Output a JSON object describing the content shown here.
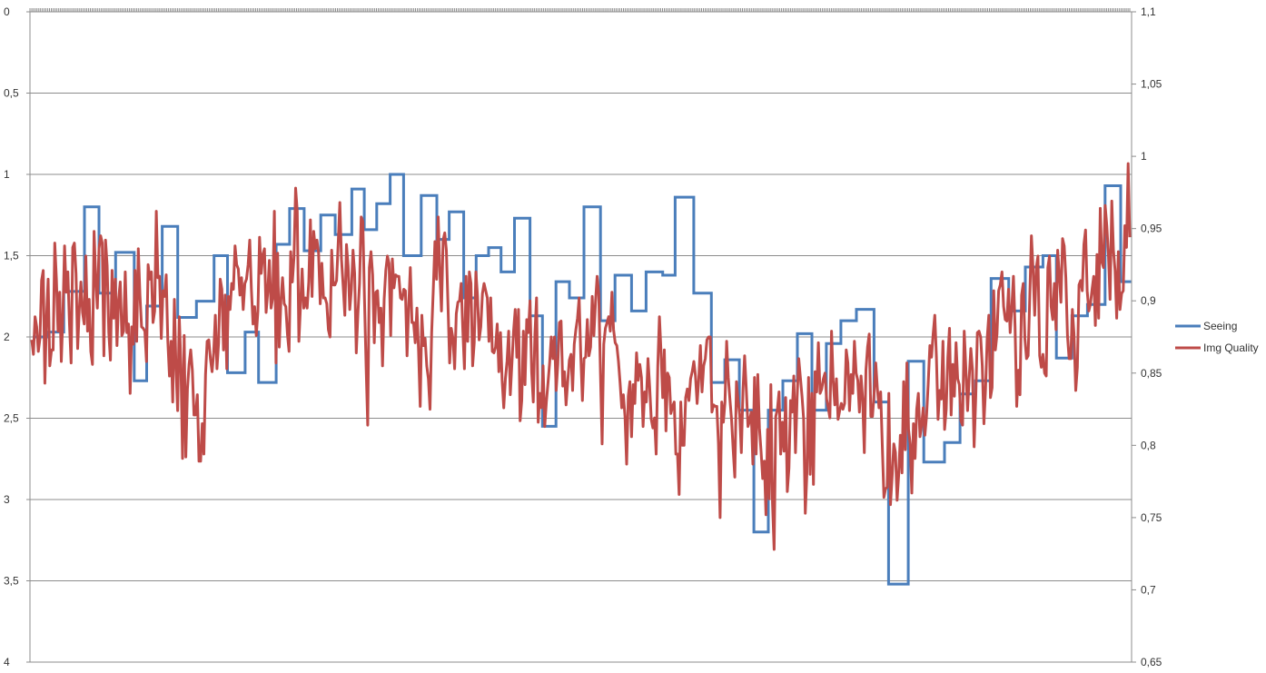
{
  "chart_data": {
    "type": "line",
    "title": "",
    "xlabel": "",
    "ylabel": "",
    "y_left": {
      "ylim": [
        0,
        4
      ],
      "reversed": true,
      "ticks": [
        "0",
        "0,5",
        "1",
        "1,5",
        "2",
        "2,5",
        "3",
        "3,5",
        "4"
      ]
    },
    "y_right": {
      "ylim": [
        0.65,
        1.1
      ],
      "ticks": [
        "1,1",
        "1,05",
        "1",
        "0,95",
        "0,9",
        "0,85",
        "0,8",
        "0,75",
        "0,7",
        "0,65"
      ]
    },
    "grid": true,
    "legend_position": "right",
    "x_points": 620,
    "series": [
      {
        "name": "Seeing",
        "axis": "left",
        "color": "#4a7ebb",
        "steps": [
          [
            0,
            2.0
          ],
          [
            15,
            1.97
          ],
          [
            30,
            1.72
          ],
          [
            50,
            1.2
          ],
          [
            64,
            1.73
          ],
          [
            80,
            1.48
          ],
          [
            98,
            2.27
          ],
          [
            110,
            1.81
          ],
          [
            125,
            1.32
          ],
          [
            140,
            1.88
          ],
          [
            158,
            1.78
          ],
          [
            175,
            1.5
          ],
          [
            188,
            2.22
          ],
          [
            205,
            1.97
          ],
          [
            218,
            2.28
          ],
          [
            235,
            1.43
          ],
          [
            248,
            1.21
          ],
          [
            262,
            1.47
          ],
          [
            278,
            1.25
          ],
          [
            292,
            1.37
          ],
          [
            308,
            1.09
          ],
          [
            320,
            1.34
          ],
          [
            332,
            1.18
          ],
          [
            345,
            1.0
          ],
          [
            358,
            1.5
          ],
          [
            375,
            1.13
          ],
          [
            390,
            1.4
          ],
          [
            402,
            1.23
          ],
          [
            416,
            1.76
          ],
          [
            428,
            1.5
          ],
          [
            440,
            1.45
          ],
          [
            452,
            1.6
          ],
          [
            465,
            1.27
          ],
          [
            480,
            1.87
          ],
          [
            492,
            2.55
          ],
          [
            505,
            1.66
          ],
          [
            518,
            1.76
          ],
          [
            532,
            1.2
          ],
          [
            548,
            1.9
          ],
          [
            562,
            1.62
          ],
          [
            578,
            1.84
          ],
          [
            592,
            1.6
          ],
          [
            608,
            1.62
          ],
          [
            620,
            1.14
          ],
          [
            638,
            1.73
          ],
          [
            655,
            2.28
          ],
          [
            668,
            2.14
          ],
          [
            682,
            2.45
          ],
          [
            696,
            3.2
          ],
          [
            710,
            2.45
          ],
          [
            724,
            2.27
          ],
          [
            738,
            1.98
          ],
          [
            752,
            2.45
          ],
          [
            766,
            2.04
          ],
          [
            780,
            1.9
          ],
          [
            795,
            1.83
          ],
          [
            812,
            2.4
          ],
          [
            826,
            3.52
          ],
          [
            845,
            2.15
          ],
          [
            860,
            2.77
          ],
          [
            880,
            2.65
          ],
          [
            895,
            2.35
          ],
          [
            910,
            2.27
          ],
          [
            925,
            1.64
          ],
          [
            942,
            1.84
          ],
          [
            958,
            1.57
          ],
          [
            975,
            1.5
          ],
          [
            988,
            2.13
          ],
          [
            1003,
            1.87
          ],
          [
            1018,
            1.8
          ],
          [
            1035,
            1.07
          ],
          [
            1050,
            1.66
          ],
          [
            1060,
            1.66
          ]
        ]
      },
      {
        "name": "Img Quality",
        "axis": "right",
        "color": "#be4b48",
        "values": [
          0.873,
          0.863,
          0.889,
          0.882,
          0.865,
          0.874,
          0.914,
          0.921,
          0.843,
          0.888,
          0.915,
          0.855,
          0.866,
          0.866,
          0.94,
          0.915,
          0.879,
          0.906,
          0.858,
          0.891,
          0.938,
          0.906,
          0.92,
          0.884,
          0.857,
          0.937,
          0.94,
          0.919,
          0.867,
          0.894,
          0.913,
          0.892,
          0.884,
          0.931,
          0.879,
          0.901,
          0.865,
          0.856,
          0.948,
          0.915,
          0.895,
          0.936,
          0.945,
          0.94,
          0.862,
          0.942,
          0.924,
          0.878,
          0.859,
          0.921,
          0.888,
          0.915,
          0.869,
          0.901,
          0.913,
          0.876,
          0.879,
          0.92,
          0.878,
          0.884,
          0.836,
          0.882,
          0.87,
          0.921,
          0.872,
          0.936,
          0.904,
          0.882,
          0.881,
          0.879,
          0.858,
          0.925,
          0.915,
          0.92,
          0.885,
          0.893,
          0.962,
          0.916,
          0.917,
          0.874,
          0.907,
          0.903,
          0.918,
          0.872,
          0.848,
          0.872,
          0.83,
          0.901,
          0.853,
          0.824,
          0.889,
          0.856,
          0.791,
          0.876,
          0.792,
          0.839,
          0.856,
          0.866,
          0.852,
          0.821,
          0.821,
          0.835,
          0.789,
          0.789,
          0.815,
          0.794,
          0.849,
          0.872,
          0.873,
          0.86,
          0.851,
          0.864,
          0.89,
          0.853,
          0.871,
          0.915,
          0.908,
          0.866,
          0.904,
          0.853,
          0.903,
          0.894,
          0.912,
          0.908,
          0.938,
          0.925,
          0.922,
          0.904,
          0.916,
          0.894,
          0.912,
          0.915,
          0.925,
          0.942,
          0.908,
          0.884,
          0.896,
          0.876,
          0.893,
          0.944,
          0.919,
          0.932,
          0.936,
          0.892,
          0.906,
          0.928,
          0.895,
          0.902,
          0.962,
          0.857,
          0.933,
          0.868,
          0.9,
          0.916,
          0.898,
          0.896,
          0.877,
          0.865,
          0.934,
          0.913,
          0.93,
          0.978,
          0.962,
          0.872,
          0.897,
          0.922,
          0.895,
          0.902,
          0.895,
          0.913,
          0.956,
          0.903,
          0.948,
          0.936,
          0.942,
          0.933,
          0.898,
          0.926,
          0.902,
          0.902,
          0.898,
          0.88,
          0.875,
          0.935,
          0.911,
          0.911,
          0.914,
          0.94,
          0.968,
          0.929,
          0.91,
          0.89,
          0.939,
          0.924,
          0.894,
          0.908,
          0.935,
          0.919,
          0.864,
          0.891,
          0.912,
          0.958,
          0.955,
          0.902,
          0.855,
          0.814,
          0.923,
          0.934,
          0.918,
          0.871,
          0.906,
          0.907,
          0.885,
          0.895,
          0.855,
          0.901,
          0.921,
          0.931,
          0.926,
          0.876,
          0.929,
          0.909,
          0.918,
          0.917,
          0.917,
          0.902,
          0.901,
          0.908,
          0.907,
          0.862,
          0.896,
          0.923,
          0.885,
          0.885,
          0.871,
          0.895,
          0.865,
          0.827,
          0.89,
          0.869,
          0.874,
          0.855,
          0.846,
          0.825,
          0.878,
          0.908,
          0.941,
          0.915,
          0.958,
          0.921,
          0.893,
          0.942,
          0.947,
          0.935,
          0.897,
          0.857,
          0.881,
          0.874,
          0.853,
          0.891,
          0.899,
          0.9,
          0.912,
          0.88,
          0.853,
          0.917,
          0.872,
          0.92,
          0.912,
          0.855,
          0.871,
          0.92,
          0.903,
          0.873,
          0.882,
          0.905,
          0.912,
          0.907,
          0.902,
          0.872,
          0.902,
          0.865,
          0.864,
          0.868,
          0.884,
          0.851,
          0.878,
          0.845,
          0.826,
          0.846,
          0.858,
          0.879,
          0.835,
          0.857,
          0.879,
          0.894,
          0.861,
          0.894,
          0.817,
          0.831,
          0.879,
          0.842,
          0.887,
          0.878,
          0.9,
          0.851,
          0.83,
          0.877,
          0.902,
          0.816,
          0.836,
          0.826,
          0.855,
          0.813,
          0.83,
          0.843,
          0.857,
          0.875,
          0.86,
          0.875,
          0.838,
          0.856,
          0.885,
          0.886,
          0.841,
          0.851,
          0.828,
          0.844,
          0.859,
          0.863,
          0.838,
          0.87,
          0.88,
          0.888,
          0.902,
          0.862,
          0.831,
          0.86,
          0.861,
          0.887,
          0.862,
          0.868,
          0.903,
          0.876,
          0.899,
          0.917,
          0.905,
          0.849,
          0.801,
          0.87,
          0.881,
          0.885,
          0.889,
          0.879,
          0.906,
          0.88,
          0.871,
          0.869,
          0.858,
          0.843,
          0.826,
          0.835,
          0.82,
          0.787,
          0.834,
          0.844,
          0.806,
          0.842,
          0.829,
          0.864,
          0.845,
          0.856,
          0.847,
          0.813,
          0.837,
          0.83,
          0.86,
          0.841,
          0.818,
          0.812,
          0.819,
          0.794,
          0.855,
          0.889,
          0.864,
          0.833,
          0.866,
          0.81,
          0.85,
          0.847,
          0.822,
          0.827,
          0.83,
          0.794,
          0.794,
          0.766,
          0.83,
          0.8,
          0.8,
          0.833,
          0.839,
          0.831,
          0.846,
          0.851,
          0.858,
          0.848,
          0.829,
          0.846,
          0.869,
          0.837,
          0.855,
          0.86,
          0.873,
          0.875,
          0.875,
          0.823,
          0.828,
          0.827,
          0.827,
          0.801,
          0.75,
          0.83,
          0.816,
          0.83,
          0.872,
          0.847,
          0.832,
          0.818,
          0.797,
          0.778,
          0.844,
          0.831,
          0.821,
          0.795,
          0.838,
          0.862,
          0.838,
          0.813,
          0.817,
          0.823,
          0.787,
          0.847,
          0.794,
          0.849,
          0.812,
          0.796,
          0.777,
          0.789,
          0.752,
          0.811,
          0.763,
          0.842,
          0.76,
          0.728,
          0.82,
          0.825,
          0.837,
          0.794,
          0.816,
          0.796,
          0.833,
          0.768,
          0.784,
          0.831,
          0.823,
          0.848,
          0.795,
          0.833,
          0.86,
          0.847,
          0.834,
          0.818,
          0.753,
          0.781,
          0.847,
          0.78,
          0.836,
          0.773,
          0.851,
          0.837,
          0.871,
          0.836,
          0.839,
          0.846,
          0.85,
          0.832,
          0.826,
          0.819,
          0.879,
          0.845,
          0.828,
          0.846,
          0.818,
          0.824,
          0.829,
          0.825,
          0.829,
          0.866,
          0.857,
          0.824,
          0.849,
          0.836,
          0.872,
          0.85,
          0.845,
          0.823,
          0.848,
          0.832,
          0.795,
          0.852,
          0.868,
          0.877,
          0.82,
          0.82,
          0.836,
          0.857,
          0.839,
          0.826,
          0.837,
          0.8,
          0.764,
          0.77,
          0.771,
          0.836,
          0.759,
          0.779,
          0.801,
          0.795,
          0.762,
          0.78,
          0.807,
          0.781,
          0.844,
          0.797,
          0.857,
          0.811,
          0.801,
          0.767,
          0.815,
          0.791,
          0.825,
          0.836,
          0.806,
          0.814,
          0.826,
          0.807,
          0.82,
          0.842,
          0.869,
          0.861,
          0.877,
          0.89,
          0.861,
          0.818,
          0.838,
          0.832,
          0.872,
          0.811,
          0.825,
          0.861,
          0.881,
          0.821,
          0.856,
          0.834,
          0.871,
          0.846,
          0.842,
          0.817,
          0.814,
          0.879,
          0.852,
          0.824,
          0.847,
          0.867,
          0.852,
          0.799,
          0.833,
          0.878,
          0.879,
          0.875,
          0.855,
          0.815,
          0.839,
          0.874,
          0.89,
          0.833,
          0.84,
          0.907,
          0.866,
          0.877,
          0.907,
          0.911,
          0.92,
          0.896,
          0.887,
          0.886,
          0.908,
          0.878,
          0.895,
          0.917,
          0.882,
          0.827,
          0.852,
          0.835,
          0.904,
          0.912,
          0.874,
          0.86,
          0.862,
          0.903,
          0.945,
          0.922,
          0.89,
          0.923,
          0.931,
          0.862,
          0.854,
          0.863,
          0.85,
          0.848,
          0.923,
          0.931,
          0.896,
          0.887,
          0.912,
          0.88,
          0.935,
          0.918,
          0.899,
          0.943,
          0.938,
          0.916,
          0.876,
          0.86,
          0.86,
          0.894,
          0.877,
          0.838,
          0.854,
          0.911,
          0.914,
          0.907,
          0.939,
          0.949,
          0.907,
          0.893,
          0.898,
          0.908,
          0.917,
          0.883,
          0.932,
          0.888,
          0.964,
          0.927,
          0.923,
          0.966,
          0.952,
          0.932,
          0.901,
          0.969,
          0.935,
          0.921,
          0.888,
          0.934,
          0.894,
          0.905,
          0.907,
          0.952,
          0.937,
          0.995,
          0.944
        ]
      }
    ]
  }
}
